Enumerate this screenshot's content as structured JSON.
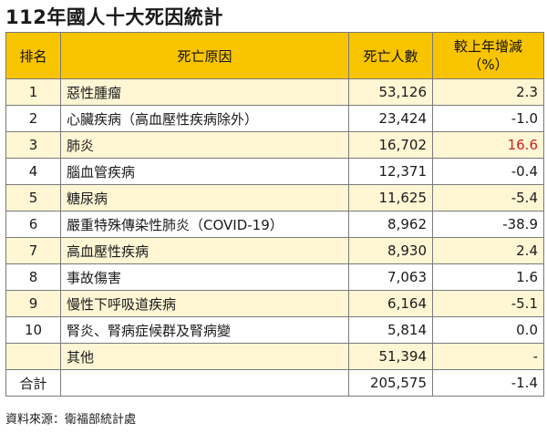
{
  "title": "112年國人十大死因統計",
  "headers": {
    "rank": "排名",
    "cause": "死亡原因",
    "deaths": "死亡人數",
    "change_line1": "較上年增減",
    "change_line2": "（%）"
  },
  "rows": [
    {
      "rank": "1",
      "cause": "惡性腫瘤",
      "deaths": "53,126",
      "change": "2.3"
    },
    {
      "rank": "2",
      "cause": "心臟疾病（高血壓性疾病除外）",
      "deaths": "23,424",
      "change": "-1.0"
    },
    {
      "rank": "3",
      "cause": "肺炎",
      "deaths": "16,702",
      "change": "16.6"
    },
    {
      "rank": "4",
      "cause": "腦血管疾病",
      "deaths": "12,371",
      "change": "-0.4"
    },
    {
      "rank": "5",
      "cause": "糖尿病",
      "deaths": "11,625",
      "change": "-5.4"
    },
    {
      "rank": "6",
      "cause": "嚴重特殊傳染性肺炎（COVID-19）",
      "deaths": "8,962",
      "change": "-38.9"
    },
    {
      "rank": "7",
      "cause": "高血壓性疾病",
      "deaths": "8,930",
      "change": "2.4"
    },
    {
      "rank": "8",
      "cause": "事故傷害",
      "deaths": "7,063",
      "change": "1.6"
    },
    {
      "rank": "9",
      "cause": "慢性下呼吸道疾病",
      "deaths": "6,164",
      "change": "-5.1"
    },
    {
      "rank": "10",
      "cause": "腎炎、腎病症候群及腎病變",
      "deaths": "5,814",
      "change": "0.0"
    },
    {
      "rank": "",
      "cause": "其他",
      "deaths": "51,394",
      "change": "-"
    }
  ],
  "total": {
    "label": "合計",
    "deaths": "205,575",
    "change": "-1.4"
  },
  "source": "資料來源：衛福部統計處",
  "colors": {
    "header_bg": "#f8c400",
    "stripe_bg": "#fff6d4",
    "highlight_text": "#d21d1d"
  }
}
